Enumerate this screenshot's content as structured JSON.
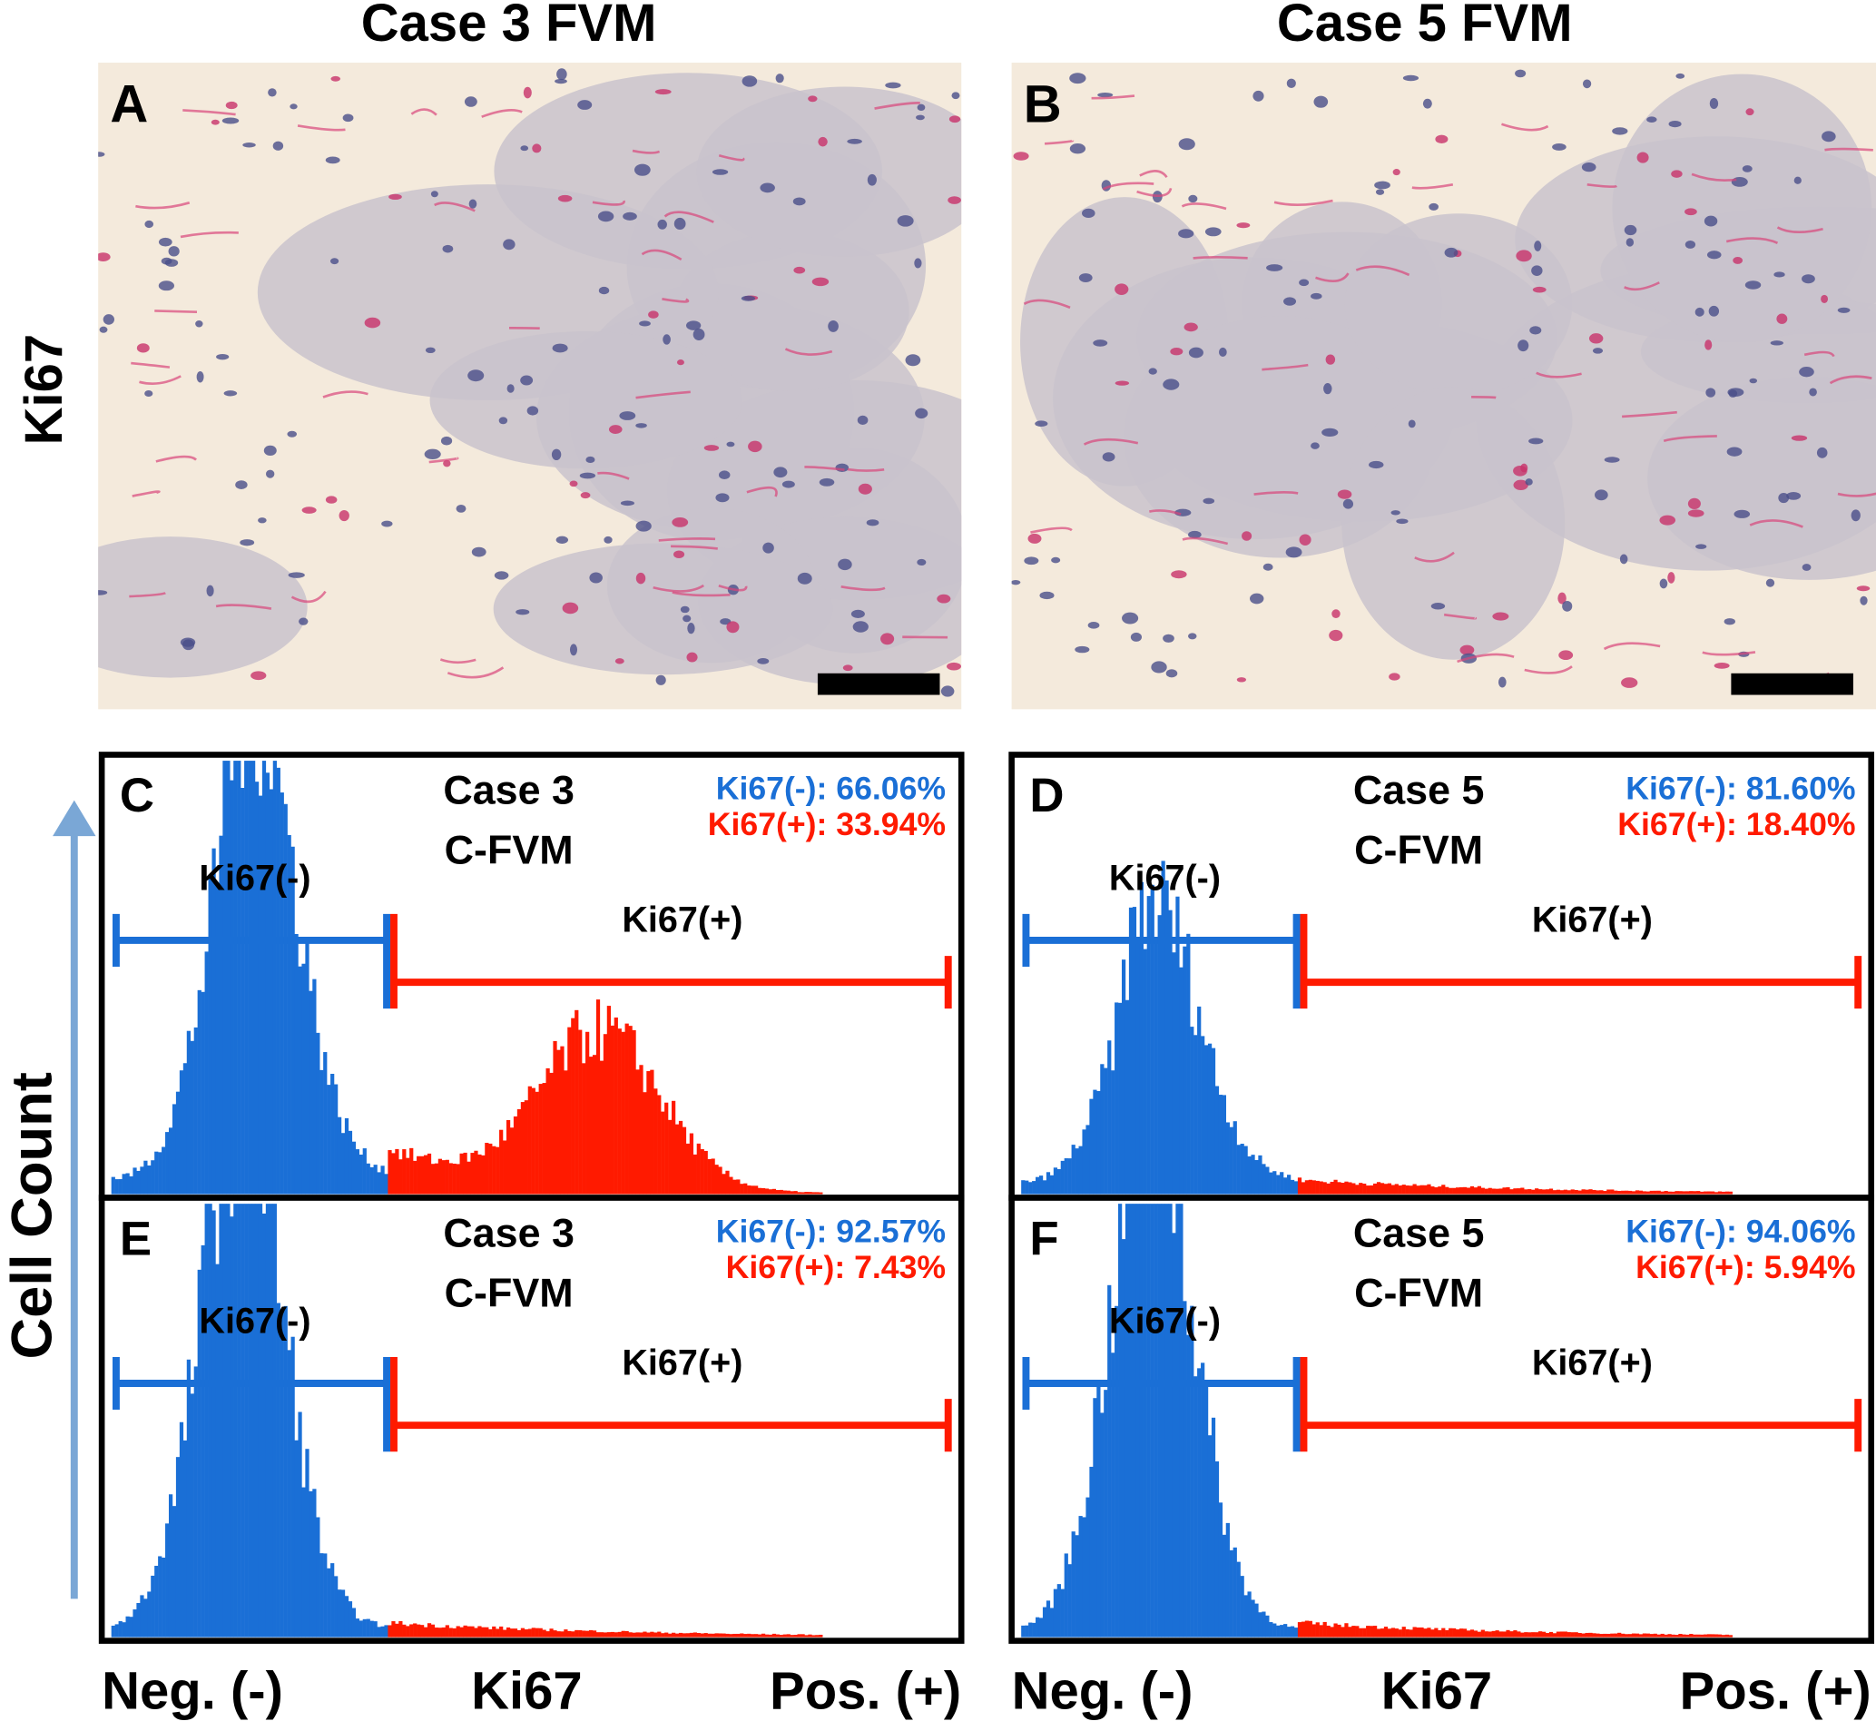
{
  "columns": [
    "Case 3 FVM",
    "Case 5 FVM"
  ],
  "row_label": "Ki67",
  "micrographs": [
    {
      "letter": "A"
    },
    {
      "letter": "B"
    }
  ],
  "y_axis_label": "Cell Count",
  "histograms": [
    {
      "letter": "C",
      "case": "Case 3",
      "sample": "C-FVM",
      "negative_share": "Ki67(-): 66.06%",
      "positive_share": "Ki67(+): 33.94%",
      "negative_gate": "Ki67(-)",
      "positive_gate": "Ki67(+)"
    },
    {
      "letter": "D",
      "case": "Case 5",
      "sample": "C-FVM",
      "negative_share": "Ki67(-): 81.60%",
      "positive_share": "Ki67(+): 18.40%",
      "negative_gate": "Ki67(-)",
      "positive_gate": "Ki67(+)"
    },
    {
      "letter": "E",
      "case": "Case 3",
      "sample": "C-FVM",
      "negative_share": "Ki67(-): 92.57%",
      "positive_share": "Ki67(+): 7.43%",
      "negative_gate": "Ki67(-)",
      "positive_gate": "Ki67(+)"
    },
    {
      "letter": "F",
      "case": "Case 5",
      "sample": "C-FVM",
      "negative_share": "Ki67(-): 94.06%",
      "positive_share": "Ki67(+): 5.94%",
      "negative_gate": "Ki67(-)",
      "positive_gate": "Ki67(+)"
    }
  ],
  "x_axes": [
    {
      "negative": "Neg. (-)",
      "marker": "Ki67",
      "positive": "Pos. (+)"
    },
    {
      "negative": "Neg. (-)",
      "marker": "Ki67",
      "positive": "Pos. (+)"
    }
  ]
}
